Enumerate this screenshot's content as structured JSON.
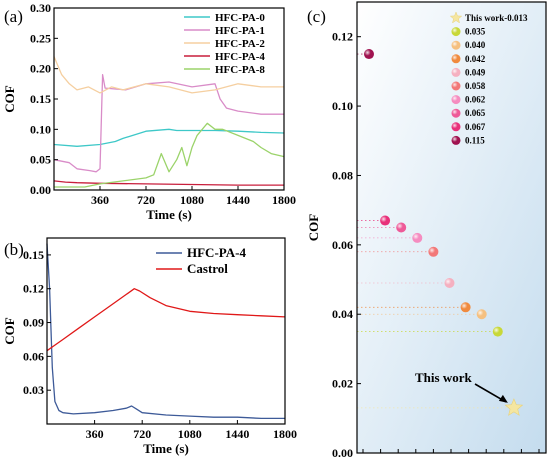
{
  "chart_data": [
    {
      "panel": "(a)",
      "type": "line",
      "xlabel": "Time (s)",
      "ylabel": "COF",
      "xlim": [
        0,
        1800
      ],
      "ylim": [
        0,
        0.3
      ],
      "xticks": [
        360,
        720,
        1080,
        1440,
        1800
      ],
      "yticks": [
        "0.00",
        "0.05",
        "0.10",
        "0.15",
        "0.20",
        "0.25",
        "0.30"
      ],
      "legend_position": "top-right",
      "series": [
        {
          "name": "HFC-PA-0",
          "color": "#3ec8c8",
          "x": [
            0,
            180,
            360,
            480,
            540,
            720,
            900,
            960,
            1080,
            1260,
            1440,
            1620,
            1800
          ],
          "y": [
            0.075,
            0.072,
            0.075,
            0.08,
            0.085,
            0.097,
            0.1,
            0.098,
            0.098,
            0.098,
            0.097,
            0.095,
            0.094
          ]
        },
        {
          "name": "HFC-PA-1",
          "color": "#d98cc8",
          "x": [
            0,
            120,
            180,
            280,
            330,
            360,
            380,
            400,
            560,
            720,
            900,
            1080,
            1260,
            1300,
            1350,
            1440,
            1620,
            1800
          ],
          "y": [
            0.05,
            0.045,
            0.035,
            0.032,
            0.03,
            0.035,
            0.19,
            0.168,
            0.165,
            0.175,
            0.178,
            0.17,
            0.175,
            0.15,
            0.135,
            0.13,
            0.125,
            0.125
          ]
        },
        {
          "name": "HFC-PA-2",
          "color": "#f5cfa0",
          "x": [
            0,
            60,
            120,
            180,
            270,
            360,
            450,
            540,
            720,
            900,
            1080,
            1260,
            1440,
            1620,
            1800
          ],
          "y": [
            0.22,
            0.19,
            0.175,
            0.165,
            0.17,
            0.16,
            0.17,
            0.165,
            0.175,
            0.17,
            0.16,
            0.165,
            0.175,
            0.17,
            0.17
          ]
        },
        {
          "name": "HFC-PA-4",
          "color": "#c81e3c",
          "x": [
            0,
            90,
            180,
            360,
            720,
            1080,
            1440,
            1800
          ],
          "y": [
            0.015,
            0.013,
            0.012,
            0.011,
            0.01,
            0.009,
            0.008,
            0.008
          ]
        },
        {
          "name": "HFC-PA-8",
          "color": "#9bd36a",
          "x": [
            0,
            120,
            240,
            360,
            540,
            720,
            780,
            840,
            900,
            960,
            1000,
            1040,
            1080,
            1120,
            1200,
            1260,
            1320,
            1440,
            1560,
            1620,
            1700,
            1800
          ],
          "y": [
            0.005,
            0.005,
            0.005,
            0.01,
            0.015,
            0.02,
            0.025,
            0.06,
            0.03,
            0.05,
            0.07,
            0.04,
            0.07,
            0.09,
            0.11,
            0.1,
            0.1,
            0.09,
            0.08,
            0.07,
            0.06,
            0.055
          ]
        }
      ]
    },
    {
      "panel": "(b)",
      "type": "line",
      "xlabel": "Time (s)",
      "ylabel": "COF",
      "xlim": [
        0,
        1800
      ],
      "ylim": [
        0,
        0.165
      ],
      "xticks": [
        360,
        720,
        1080,
        1440,
        1800
      ],
      "yticks": [
        "0.03",
        "0.06",
        "0.09",
        "0.12",
        "0.15"
      ],
      "legend_position": "top-right",
      "series": [
        {
          "name": "HFC-PA-4",
          "color": "#3d5a98",
          "x": [
            0,
            20,
            40,
            60,
            90,
            120,
            200,
            360,
            500,
            600,
            640,
            680,
            720,
            900,
            1080,
            1260,
            1440,
            1620,
            1800
          ],
          "y": [
            0.16,
            0.12,
            0.05,
            0.02,
            0.012,
            0.01,
            0.009,
            0.01,
            0.012,
            0.014,
            0.016,
            0.013,
            0.01,
            0.008,
            0.007,
            0.006,
            0.006,
            0.005,
            0.005
          ]
        },
        {
          "name": "Castrol",
          "color": "#e01818",
          "x": [
            0,
            60,
            120,
            240,
            360,
            480,
            600,
            660,
            700,
            780,
            900,
            1080,
            1260,
            1440,
            1620,
            1800
          ],
          "y": [
            0.065,
            0.07,
            0.075,
            0.085,
            0.095,
            0.105,
            0.115,
            0.12,
            0.118,
            0.112,
            0.105,
            0.1,
            0.098,
            0.097,
            0.096,
            0.095
          ]
        }
      ]
    },
    {
      "panel": "(c)",
      "type": "scatter",
      "ylabel": "COF",
      "ylim": [
        0,
        0.13
      ],
      "yticks": [
        "0.00",
        "0.02",
        "0.04",
        "0.06",
        "0.08",
        "0.10",
        "0.12"
      ],
      "legend_position": "top-right",
      "annotation": "This work",
      "background": [
        "#ffffff",
        "#c4dcee"
      ],
      "points": [
        {
          "label": "0.115",
          "x": 1,
          "y": 0.115,
          "color": "#a01250",
          "shape": "circle"
        },
        {
          "label": "0.067",
          "x": 2,
          "y": 0.067,
          "color": "#e8307a",
          "shape": "circle"
        },
        {
          "label": "0.065",
          "x": 3,
          "y": 0.065,
          "color": "#ee5a98",
          "shape": "circle"
        },
        {
          "label": "0.062",
          "x": 4,
          "y": 0.062,
          "color": "#f58cc0",
          "shape": "circle"
        },
        {
          "label": "0.058",
          "x": 5,
          "y": 0.058,
          "color": "#f27878",
          "shape": "circle"
        },
        {
          "label": "0.049",
          "x": 6,
          "y": 0.049,
          "color": "#f5b0c0",
          "shape": "circle"
        },
        {
          "label": "0.042",
          "x": 7,
          "y": 0.042,
          "color": "#f08a3e",
          "shape": "circle"
        },
        {
          "label": "0.040",
          "x": 8,
          "y": 0.04,
          "color": "#f5c080",
          "shape": "circle"
        },
        {
          "label": "0.035",
          "x": 9,
          "y": 0.035,
          "color": "#c8d838",
          "shape": "circle"
        },
        {
          "label": "This work-0.013",
          "x": 10,
          "y": 0.013,
          "color": "#f5e6a0",
          "shape": "star"
        }
      ],
      "legend_order": [
        "This work-0.013",
        "0.035",
        "0.040",
        "0.042",
        "0.049",
        "0.058",
        "0.062",
        "0.065",
        "0.067",
        "0.115"
      ]
    }
  ]
}
